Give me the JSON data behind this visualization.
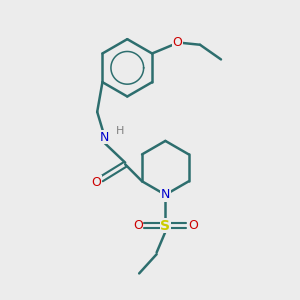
{
  "bg_color": "#ececec",
  "bond_color": "#2d6e6e",
  "bond_lw": 1.8,
  "N_color": "#0000cc",
  "O_color": "#cc0000",
  "S_color": "#cccc00",
  "H_color": "#808080",
  "font_size": 9,
  "fig_size": [
    3.0,
    3.0
  ],
  "dpi": 100,
  "xlim": [
    1.5,
    9.0
  ],
  "ylim": [
    1.0,
    9.5
  ]
}
